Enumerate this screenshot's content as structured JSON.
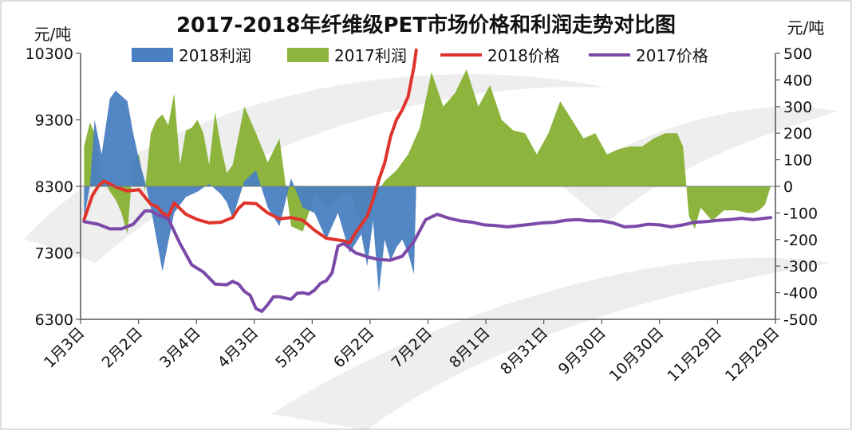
{
  "chart_data": {
    "type": "line",
    "title": "2017-2018年纤维级PET市场价格和利润走势对比图",
    "ylabel_left": "元/吨",
    "ylabel_right": "元/吨",
    "ylim_left": [
      6300,
      10300
    ],
    "ylim_right": [
      -500,
      500
    ],
    "left_ticks": [
      "10300",
      "9300",
      "8300",
      "7300",
      "6300"
    ],
    "right_ticks": [
      "500",
      "400",
      "300",
      "200",
      "100",
      "0",
      "-100",
      "-200",
      "-300",
      "-400",
      "-500"
    ],
    "x_categories": [
      "1月3日",
      "2月2日",
      "3月4日",
      "4月3日",
      "5月3日",
      "6月2日",
      "7月2日",
      "8月1日",
      "8月31日",
      "9月30日",
      "10月30日",
      "11月29日",
      "12月29日"
    ],
    "legend": [
      "2018利润",
      "2017利润",
      "2018价格",
      "2017价格"
    ],
    "colors": {
      "profit_2018": "#4a7fc1",
      "profit_2017": "#8db53e",
      "price_2018": "#e0332b",
      "price_2017": "#7b4aa8"
    },
    "grid": false,
    "series": [
      {
        "name": "2018价格",
        "axis": "left",
        "kind": "line",
        "x": [
          3,
          10,
          15,
          20,
          25,
          30,
          40,
          50,
          60,
          65,
          70,
          75,
          80,
          90,
          100,
          110,
          120,
          130,
          135,
          140,
          150,
          160,
          170,
          180,
          190,
          200,
          210,
          225,
          230,
          235,
          240,
          245,
          250,
          255,
          260,
          265,
          270,
          275,
          280,
          285,
          287
        ],
        "y": [
          7800,
          8160,
          8300,
          8380,
          8340,
          8290,
          8230,
          8250,
          8030,
          8000,
          7900,
          7850,
          8050,
          7880,
          7800,
          7750,
          7760,
          7830,
          7970,
          8050,
          8040,
          7900,
          7810,
          7830,
          7790,
          7640,
          7520,
          7480,
          7450,
          7600,
          7720,
          7850,
          8100,
          8400,
          8650,
          9050,
          9300,
          9450,
          9650,
          10100,
          10350
        ]
      },
      {
        "name": "2017价格",
        "axis": "left",
        "kind": "line",
        "x": [
          3,
          15,
          25,
          35,
          45,
          55,
          60,
          65,
          75,
          85,
          95,
          105,
          115,
          125,
          130,
          135,
          140,
          145,
          150,
          155,
          160,
          165,
          170,
          175,
          180,
          185,
          190,
          195,
          200,
          205,
          210,
          215,
          220,
          225,
          235,
          245,
          255,
          265,
          275,
          285,
          295,
          305,
          315,
          325,
          335,
          345,
          355,
          365,
          375,
          385,
          395,
          405,
          415,
          425,
          435,
          445,
          455,
          465,
          475,
          485,
          495,
          505,
          515,
          525,
          535,
          545,
          555,
          565,
          575,
          590
        ],
        "y": [
          7770,
          7730,
          7660,
          7660,
          7730,
          7930,
          7930,
          7880,
          7810,
          7440,
          7120,
          7010,
          6830,
          6820,
          6870,
          6830,
          6720,
          6660,
          6460,
          6420,
          6520,
          6640,
          6640,
          6620,
          6600,
          6690,
          6700,
          6680,
          6740,
          6840,
          6880,
          7000,
          7400,
          7440,
          7300,
          7240,
          7200,
          7190,
          7250,
          7470,
          7800,
          7880,
          7820,
          7780,
          7760,
          7720,
          7710,
          7690,
          7710,
          7730,
          7750,
          7760,
          7790,
          7800,
          7780,
          7780,
          7750,
          7690,
          7700,
          7730,
          7720,
          7690,
          7720,
          7760,
          7770,
          7790,
          7800,
          7820,
          7800,
          7830
        ]
      },
      {
        "name": "2018利润",
        "axis": "right",
        "kind": "area",
        "x": [
          3,
          8,
          12,
          18,
          25,
          30,
          40,
          45,
          50,
          55,
          60,
          65,
          70,
          80,
          90,
          100,
          110,
          120,
          125,
          130,
          140,
          150,
          160,
          170,
          180,
          190,
          200,
          205,
          210,
          220,
          230,
          240,
          245,
          250,
          255,
          260,
          265,
          270,
          275,
          280,
          285,
          287
        ],
        "y": [
          -120,
          0,
          250,
          120,
          330,
          360,
          320,
          200,
          100,
          20,
          -80,
          -200,
          -320,
          -100,
          -40,
          -20,
          10,
          -30,
          -60,
          -120,
          20,
          60,
          -80,
          -150,
          30,
          -80,
          -100,
          -150,
          -200,
          -100,
          -250,
          -180,
          -300,
          -130,
          -400,
          -200,
          -280,
          -230,
          -200,
          -250,
          -330,
          0
        ]
      },
      {
        "name": "2017利润",
        "axis": "right",
        "kind": "area",
        "x": [
          3,
          8,
          12,
          18,
          25,
          30,
          35,
          40,
          45,
          50,
          55,
          60,
          65,
          70,
          75,
          80,
          85,
          90,
          95,
          100,
          105,
          110,
          115,
          120,
          125,
          130,
          140,
          150,
          160,
          170,
          180,
          190,
          200,
          210,
          220,
          230,
          240,
          250,
          260,
          270,
          280,
          290,
          300,
          310,
          320,
          330,
          340,
          350,
          360,
          370,
          380,
          390,
          400,
          410,
          420,
          430,
          440,
          450,
          460,
          470,
          480,
          490,
          500,
          510,
          515,
          520,
          525,
          530,
          540,
          550,
          560,
          570,
          575,
          580,
          585,
          590
        ],
        "y": [
          150,
          240,
          200,
          40,
          -20,
          -50,
          -100,
          -180,
          100,
          120,
          -20,
          200,
          250,
          270,
          230,
          350,
          80,
          210,
          220,
          250,
          200,
          80,
          280,
          150,
          50,
          80,
          300,
          200,
          90,
          180,
          -150,
          -170,
          -30,
          -80,
          -50,
          -20,
          -150,
          -50,
          20,
          60,
          120,
          220,
          430,
          300,
          350,
          440,
          300,
          380,
          250,
          210,
          200,
          120,
          200,
          320,
          250,
          180,
          200,
          120,
          140,
          150,
          150,
          180,
          200,
          200,
          150,
          -110,
          -160,
          -80,
          -130,
          -90,
          -90,
          -100,
          -100,
          -90,
          -70,
          0
        ]
      }
    ]
  }
}
